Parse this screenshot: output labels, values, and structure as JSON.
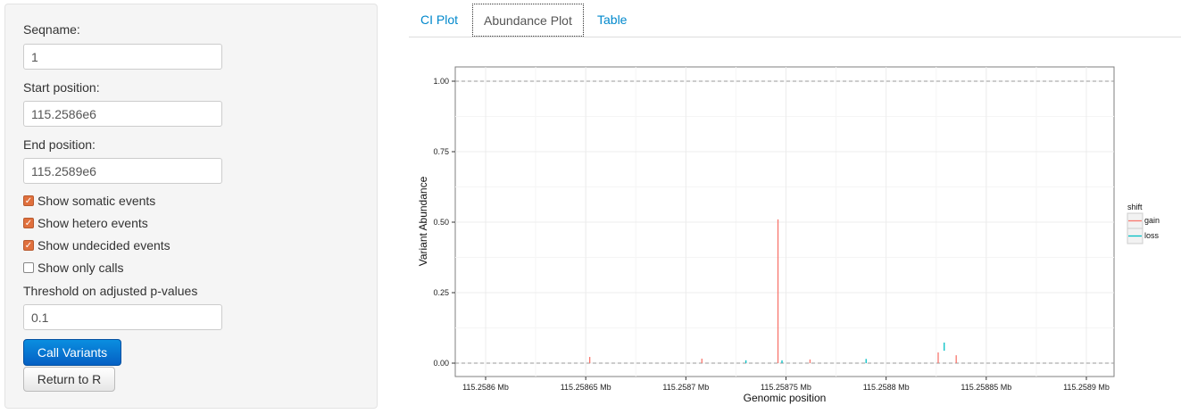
{
  "sidebar": {
    "seqname_label": "Seqname:",
    "seqname_value": "1",
    "start_label": "Start position:",
    "start_value": "115.2586e6",
    "end_label": "End position:",
    "end_value": "115.2589e6",
    "checkboxes": [
      {
        "label": "Show somatic events",
        "checked": true
      },
      {
        "label": "Show hetero events",
        "checked": true
      },
      {
        "label": "Show undecided events",
        "checked": true
      },
      {
        "label": "Show only calls",
        "checked": false
      }
    ],
    "threshold_label": "Threshold on adjusted p-values",
    "threshold_value": "0.1",
    "call_button": "Call Variants",
    "return_button": "Return to R"
  },
  "tabs": [
    {
      "label": "CI Plot",
      "active": false
    },
    {
      "label": "Abundance Plot",
      "active": true
    },
    {
      "label": "Table",
      "active": false
    }
  ],
  "chart_data": {
    "type": "bar",
    "xlabel": "Genomic position",
    "ylabel": "Variant Abundance",
    "xlim": [
      115.25858,
      115.25891
    ],
    "ylim": [
      -0.05,
      1.05
    ],
    "xticks": [
      115.2586,
      115.25865,
      115.2587,
      115.25875,
      115.2588,
      115.25885,
      115.2589
    ],
    "xtick_labels": [
      "115.2586 Mb",
      "115.25865 Mb",
      "115.2587 Mb",
      "115.25875 Mb",
      "115.2588 Mb",
      "115.25885 Mb",
      "115.2589 Mb"
    ],
    "yticks": [
      0,
      0.25,
      0.5,
      0.75,
      1
    ],
    "ytick_labels": [
      "0.00",
      "0.25",
      "0.50",
      "0.75",
      "1.00"
    ],
    "hlines": [
      0,
      1
    ],
    "grid": true,
    "legend": {
      "title": "shift",
      "placement": "right",
      "entries": [
        {
          "name": "gain",
          "color": "#F8766D"
        },
        {
          "name": "loss",
          "color": "#00BFC4"
        }
      ]
    },
    "points": [
      {
        "x": 115.258652,
        "ymin": 0,
        "ymax": 0.022,
        "shift": "gain"
      },
      {
        "x": 115.258708,
        "ymin": 0,
        "ymax": 0.016,
        "shift": "gain"
      },
      {
        "x": 115.25873,
        "ymin": 0,
        "ymax": 0.01,
        "shift": "loss"
      },
      {
        "x": 115.258746,
        "ymin": 0,
        "ymax": 0.51,
        "shift": "gain"
      },
      {
        "x": 115.258748,
        "ymin": 0,
        "ymax": 0.01,
        "shift": "loss"
      },
      {
        "x": 115.258762,
        "ymin": 0,
        "ymax": 0.013,
        "shift": "gain"
      },
      {
        "x": 115.25879,
        "ymin": 0,
        "ymax": 0.015,
        "shift": "loss"
      },
      {
        "x": 115.258826,
        "ymin": 0,
        "ymax": 0.038,
        "shift": "gain"
      },
      {
        "x": 115.258829,
        "ymin": 0.044,
        "ymax": 0.073,
        "shift": "loss"
      },
      {
        "x": 115.258835,
        "ymin": 0,
        "ymax": 0.028,
        "shift": "gain"
      }
    ]
  }
}
